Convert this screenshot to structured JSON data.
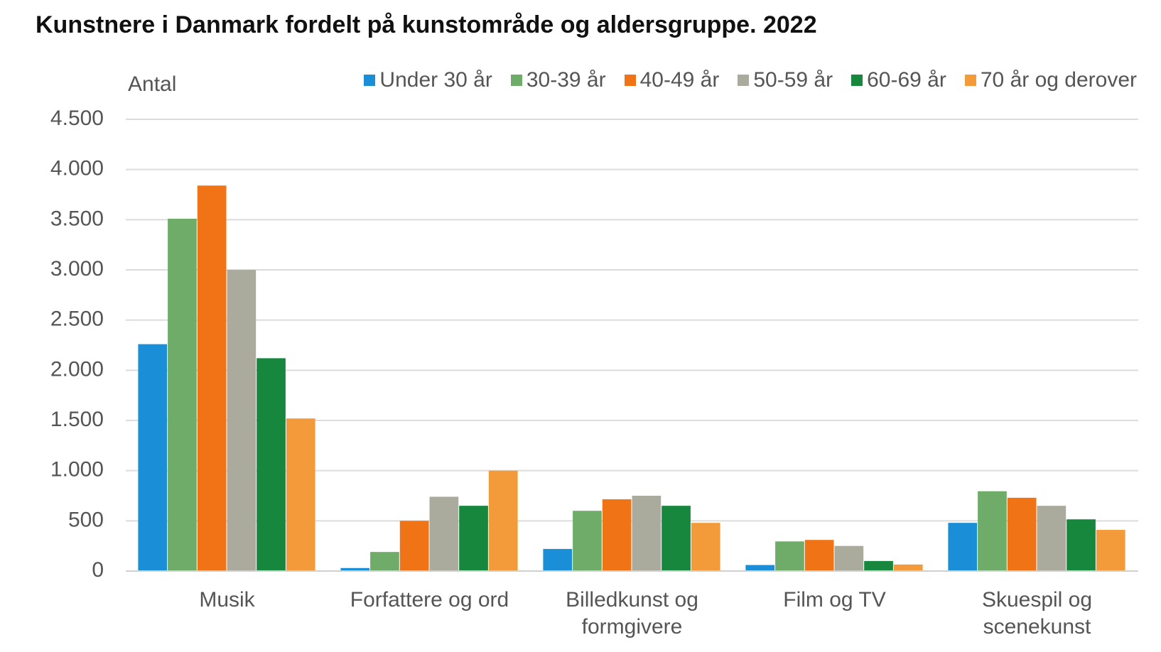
{
  "chart_data": {
    "type": "bar",
    "title": "Kunstnere i Danmark fordelt på kunstområde og aldersgruppe. 2022",
    "y_label": "Antal",
    "categories": [
      "Musik",
      "Forfattere og ord",
      "Billedkunst og formgivere",
      "Film og TV",
      "Skuespil og scenekunst"
    ],
    "series": [
      {
        "name": "Under 30 år",
        "color": "#1a8fd8",
        "values": [
          2260,
          30,
          220,
          60,
          480
        ]
      },
      {
        "name": "30-39 år",
        "color": "#6fac6a",
        "values": [
          3510,
          190,
          600,
          295,
          795
        ]
      },
      {
        "name": "40-49 år",
        "color": "#f07416",
        "values": [
          3840,
          500,
          715,
          310,
          730
        ]
      },
      {
        "name": "50-59 år",
        "color": "#abab9d",
        "values": [
          3000,
          740,
          750,
          250,
          650
        ]
      },
      {
        "name": "60-69 år",
        "color": "#16873d",
        "values": [
          2120,
          650,
          650,
          100,
          515
        ]
      },
      {
        "name": "70 år og derover",
        "color": "#f39a3a",
        "values": [
          1520,
          1000,
          480,
          65,
          410
        ]
      }
    ],
    "ylim": [
      0,
      4500
    ],
    "yticks": [
      0,
      500,
      {
        "value": 1000,
        "label": "1.000"
      },
      {
        "value": 1500,
        "label": "1.500"
      },
      {
        "value": 2000,
        "label": "2.000"
      },
      {
        "value": 2500,
        "label": "2.500"
      },
      {
        "value": 3000,
        "label": "3.000"
      },
      {
        "value": 3500,
        "label": "3.500"
      },
      {
        "value": 4000,
        "label": "4.000"
      },
      {
        "value": 4500,
        "label": "4.500"
      }
    ],
    "grid": true
  }
}
